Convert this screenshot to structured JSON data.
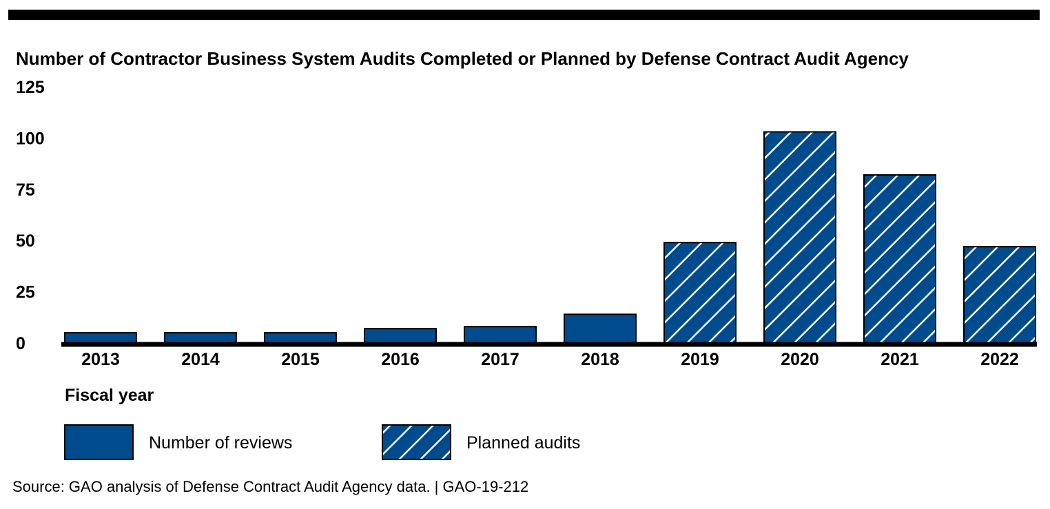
{
  "chart_data": {
    "type": "bar",
    "title": "Number of Contractor Business System Audits Completed or Planned by Defense Contract Audit Agency",
    "xlabel": "Fiscal year",
    "ylabel": "",
    "ylim": [
      0,
      125
    ],
    "yticks": [
      "0",
      "25",
      "50",
      "75",
      "100",
      "125"
    ],
    "categories": [
      "2013",
      "2014",
      "2015",
      "2016",
      "2017",
      "2018",
      "2019",
      "2020",
      "2021",
      "2022"
    ],
    "series": [
      {
        "name": "Number of reviews",
        "values": [
          5,
          5,
          5,
          7,
          8,
          14,
          null,
          null,
          null,
          null
        ],
        "color": "#004b8d",
        "pattern": "solid"
      },
      {
        "name": "Planned audits",
        "values": [
          null,
          null,
          null,
          null,
          null,
          null,
          49,
          103,
          82,
          47
        ],
        "color": "#004b8d",
        "pattern": "diagonal-hatch"
      }
    ],
    "legend_position": "bottom-left",
    "grid": false
  },
  "source": "Source: GAO analysis of Defense Contract Audit Agency data.  |  GAO-19-212"
}
